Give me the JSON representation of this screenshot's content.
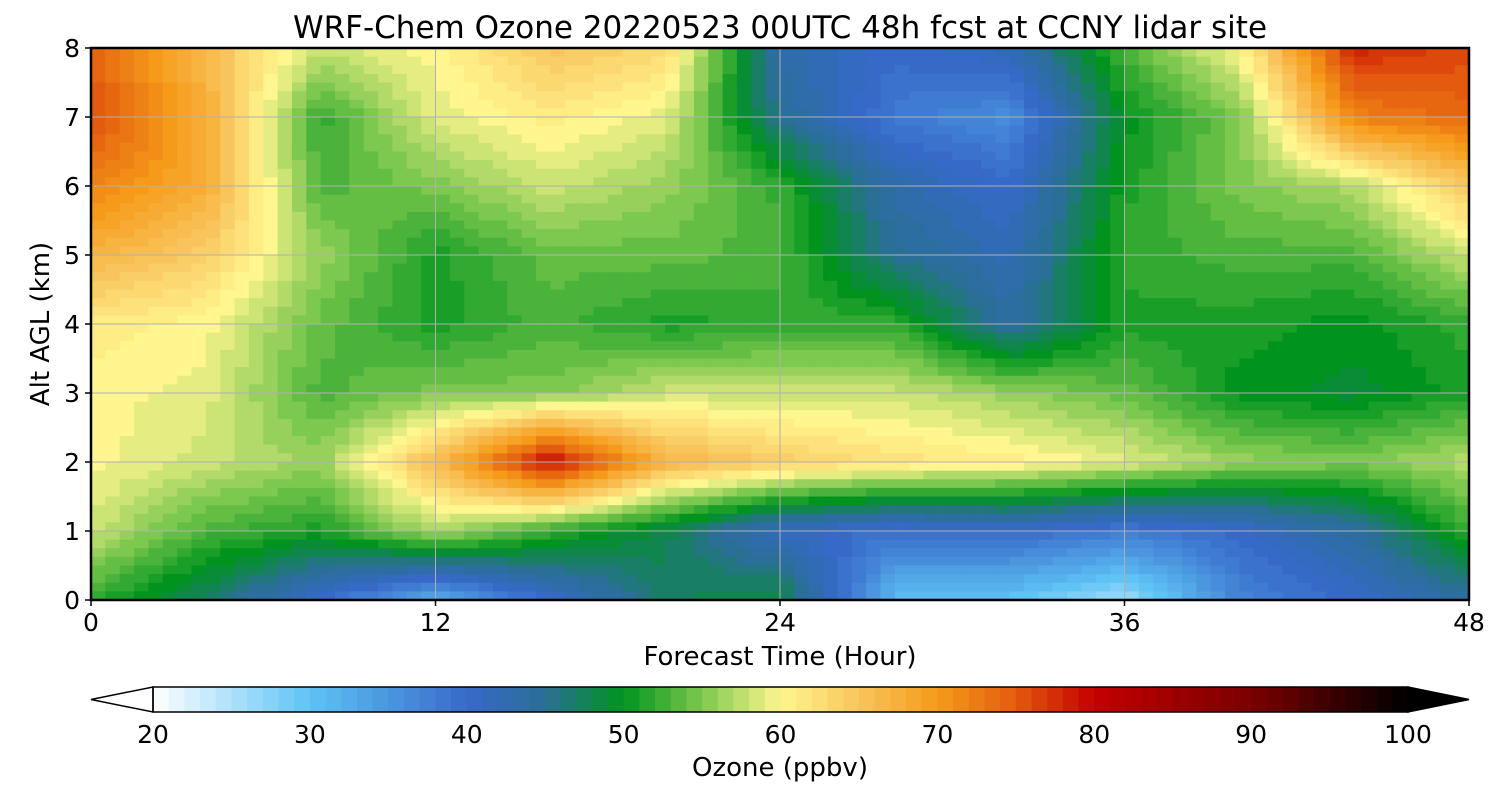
{
  "chart_data": {
    "type": "heatmap",
    "title": "WRF-Chem Ozone  20220523 00UTC 48h fcst at CCNY lidar site",
    "xlabel": "Forecast Time (Hour)",
    "ylabel": "Alt AGL (km)",
    "xlim": [
      0,
      48
    ],
    "ylim": [
      0,
      8
    ],
    "xticks": [
      "0",
      "12",
      "24",
      "36",
      "48"
    ],
    "yticks": [
      "0",
      "1",
      "2",
      "3",
      "4",
      "5",
      "6",
      "7",
      "8"
    ],
    "grid": true,
    "x": [
      0,
      4,
      8,
      12,
      16,
      20,
      24,
      28,
      32,
      36,
      40,
      44,
      48
    ],
    "y": [
      0,
      1,
      2,
      3,
      4,
      5,
      6,
      7,
      8
    ],
    "values": [
      [
        52,
        47,
        40,
        32,
        40,
        47,
        49,
        31,
        30,
        26,
        37,
        40,
        44
      ],
      [
        58,
        53,
        51,
        57,
        52,
        48,
        41,
        39,
        40,
        38,
        40,
        44,
        52
      ],
      [
        60,
        58,
        56,
        66,
        80,
        67,
        64,
        62,
        61,
        59,
        56,
        55,
        57
      ],
      [
        60,
        59,
        53,
        55,
        55,
        58,
        58,
        58,
        56,
        54,
        50,
        49,
        51
      ],
      [
        61,
        60,
        54,
        51,
        53,
        51,
        52,
        52,
        44,
        51,
        51,
        50,
        52
      ],
      [
        67,
        64,
        56,
        51,
        54,
        54,
        53,
        45,
        42,
        52,
        53,
        53,
        58
      ],
      [
        72,
        68,
        53,
        55,
        58,
        56,
        52,
        43,
        40,
        51,
        55,
        57,
        65
      ],
      [
        76,
        68,
        52,
        59,
        61,
        59,
        45,
        38,
        36,
        50,
        55,
        72,
        74
      ],
      [
        74,
        66,
        58,
        60,
        65,
        63,
        43,
        40,
        42,
        53,
        60,
        78,
        76
      ]
    ],
    "colorbar": {
      "label": "Ozone  (ppbv)",
      "min": 20,
      "max": 100,
      "ticks": [
        "20",
        "30",
        "40",
        "50",
        "60",
        "70",
        "80",
        "90",
        "100"
      ],
      "extend": "both",
      "stops": [
        {
          "v": 20,
          "color": "#ffffff"
        },
        {
          "v": 30,
          "color": "#5ec3f5"
        },
        {
          "v": 40,
          "color": "#3769c9"
        },
        {
          "v": 45,
          "color": "#2a6f96"
        },
        {
          "v": 50,
          "color": "#00941e"
        },
        {
          "v": 55,
          "color": "#7dc84e"
        },
        {
          "v": 60,
          "color": "#fff68f"
        },
        {
          "v": 65,
          "color": "#f9c45c"
        },
        {
          "v": 70,
          "color": "#f59b19"
        },
        {
          "v": 75,
          "color": "#e45a0f"
        },
        {
          "v": 80,
          "color": "#c40000"
        },
        {
          "v": 90,
          "color": "#7a0000"
        },
        {
          "v": 100,
          "color": "#000000"
        }
      ]
    }
  }
}
